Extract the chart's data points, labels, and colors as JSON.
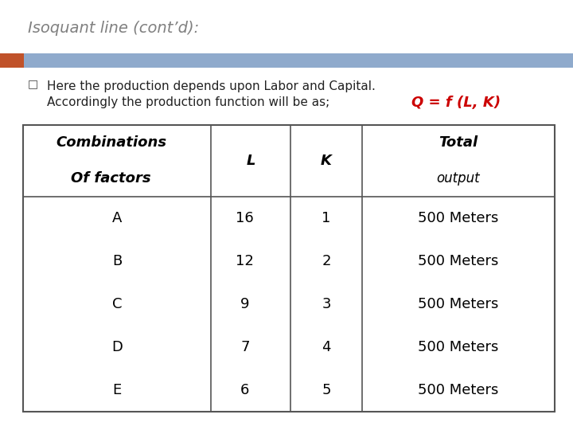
{
  "title": "Isoquant line (cont’d):",
  "title_color": "#808080",
  "title_fontsize": 14,
  "header_bar_color": "#8faacc",
  "accent_bar_color": "#c0522a",
  "bullet_text_line1": "Here the production depends upon Labor and Capital.",
  "bullet_text_line2": "Accordingly the production function will be as;",
  "formula": "Q = f (L, K)",
  "formula_color": "#cc0000",
  "bg_color": "#ffffff",
  "table_header1a": "Combinations",
  "table_header1b": "Of factors",
  "table_header2": "L",
  "table_header3": "K",
  "table_header4": "Total",
  "table_subheader4": "output",
  "table_col1": [
    "A",
    "B",
    "C",
    "D",
    "E"
  ],
  "table_col2": [
    "16",
    "12",
    "9",
    "7",
    "6"
  ],
  "table_col3": [
    "1",
    "2",
    "3",
    "4",
    "5"
  ],
  "table_col4": [
    "500 Meters",
    "500 Meters",
    "500 Meters",
    "500 Meters",
    "500 Meters"
  ],
  "table_border_color": "#555555",
  "table_header_fontsize": 12,
  "table_data_fontsize": 12
}
